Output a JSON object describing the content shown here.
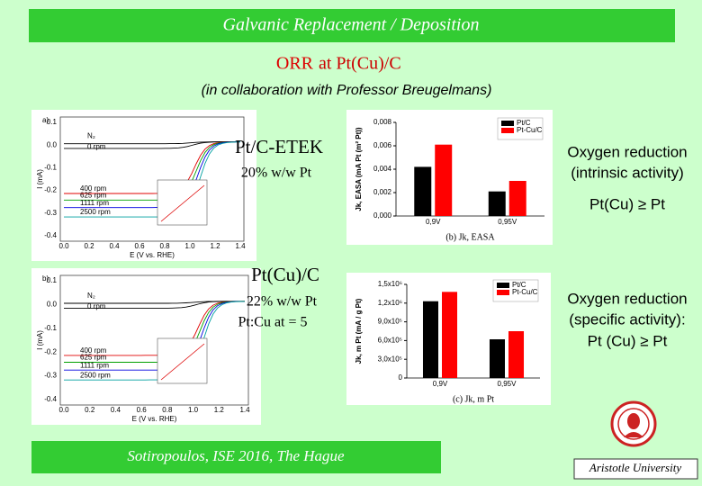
{
  "header": {
    "title": "Galvanic Replacement / Deposition"
  },
  "heading": {
    "topic": "ORR",
    "material": "at Pt(Cu)/C",
    "subtitle": "(in collaboration with Professor Breugelmans)"
  },
  "figures": [
    {
      "panel": "a)",
      "x_label": "E (V vs. RHE)",
      "y_label": "I (mA)",
      "xticks": [
        "0.0",
        "0.2",
        "0.4",
        "0.6",
        "0.8",
        "1.0",
        "1.2",
        "1.4"
      ],
      "yticks": [
        "0.1",
        "0.0",
        "-0.1",
        "-0.2",
        "-0.3",
        "-0.4"
      ],
      "curves": [
        "N₂",
        "0 rpm",
        "400 rpm",
        "625 rpm",
        "1111 rpm",
        "2500 rpm"
      ],
      "catalyst": "Pt/C-ETEK",
      "loading": "20% w/w Pt"
    },
    {
      "panel": "b)",
      "x_label": "E (V vs. RHE)",
      "y_label": "I (mA)",
      "xticks": [
        "0.0",
        "0.2",
        "0.4",
        "0.6",
        "0.8",
        "1.0",
        "1.2",
        "1.4"
      ],
      "yticks": [
        "0.1",
        "0.0",
        "-0.1",
        "-0.2",
        "-0.3",
        "-0.4"
      ],
      "curves": [
        "N₂",
        "0 rpm",
        "400 rpm",
        "625 rpm",
        "1111 rpm",
        "2500 rpm"
      ],
      "catalyst": "Pt(Cu)/C",
      "loading": "22% w/w Pt",
      "ratio": "Pt:Cu at = 5"
    }
  ],
  "chart_data": [
    {
      "type": "bar",
      "caption": "(b) Jk, EASA",
      "y_label": "Jk, EASA (mA Pt (m² Pt))",
      "categories": [
        "0,9V",
        "0,95V"
      ],
      "series": [
        {
          "name": "Pt/C",
          "color": "#000000",
          "values": [
            0.0042,
            0.0021
          ]
        },
        {
          "name": "Pt-Cu/C",
          "color": "#ff0000",
          "values": [
            0.0061,
            0.003
          ]
        }
      ],
      "ylim": [
        0,
        0.008
      ],
      "yticks": [
        {
          "value": 0,
          "label": "0,000"
        },
        {
          "value": 0.002,
          "label": "0,002"
        },
        {
          "value": 0.004,
          "label": "0,004"
        },
        {
          "value": 0.006,
          "label": "0,006"
        },
        {
          "value": 0.008,
          "label": "0,008"
        }
      ],
      "legend": "upper right"
    },
    {
      "type": "bar",
      "caption": "(c) Jk, m Pt",
      "y_label": "Jk, m Pt (mA / g Pt)",
      "categories": [
        "0,9V",
        "0,95V"
      ],
      "series": [
        {
          "name": "Pt/C",
          "color": "#000000",
          "values": [
            1230000,
            620000
          ]
        },
        {
          "name": "Pt-Cu/C",
          "color": "#ff0000",
          "values": [
            1380000,
            750000
          ]
        }
      ],
      "ylim": [
        0,
        1500000
      ],
      "yticks": [
        0,
        {
          "value": 300000,
          "label": "3,0x10⁵"
        },
        {
          "value": 600000,
          "label": "6,0x10⁵"
        },
        {
          "value": 900000,
          "label": "9,0x10⁵"
        },
        {
          "value": 1200000,
          "label": "1,2x10⁶"
        },
        {
          "value": 1500000,
          "label": "1,5x10⁶"
        }
      ],
      "legend": "upper right"
    }
  ],
  "notes": [
    {
      "lines": [
        "Oxygen reduction",
        "(intrinsic activity)"
      ],
      "relation": "Pt(Cu) ≥ Pt"
    },
    {
      "lines": [
        "Oxygen reduction",
        "(specific activity):"
      ],
      "relation": "Pt (Cu) ≥ Pt"
    }
  ],
  "footer": {
    "citation": "Sotiropoulos, ISE 2016, The Hague",
    "institution": "Aristotle University"
  }
}
